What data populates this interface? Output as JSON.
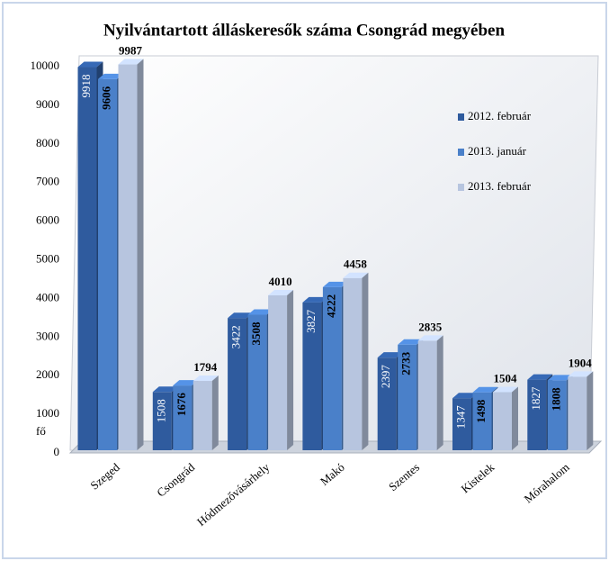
{
  "chart_data": {
    "type": "bar3d",
    "title": "Nyilvántartott álláskeresők száma Csongrád megyében",
    "y_axis_label": "fő",
    "categories": [
      "Szeged",
      "Csongrád",
      "Hódmezővásárhely",
      "Makó",
      "Szentes",
      "Kistelek",
      "Mórahalom"
    ],
    "series": [
      {
        "name": "2012. február",
        "color": "#2f5b9e",
        "values": [
          9918,
          1508,
          3422,
          3827,
          2397,
          1347,
          1827
        ]
      },
      {
        "name": "2013. január",
        "color": "#4a80c9",
        "values": [
          9606,
          1676,
          3508,
          4222,
          2733,
          1498,
          1808
        ]
      },
      {
        "name": "2013. február",
        "color": "#b7c5df",
        "values": [
          9987,
          1794,
          4010,
          4458,
          2835,
          1504,
          1904
        ]
      }
    ],
    "ylim": [
      0,
      10000
    ],
    "yticks": [
      0,
      1000,
      2000,
      3000,
      4000,
      5000,
      6000,
      7000,
      8000,
      9000,
      10000
    ],
    "grid": false,
    "legend": "right"
  }
}
